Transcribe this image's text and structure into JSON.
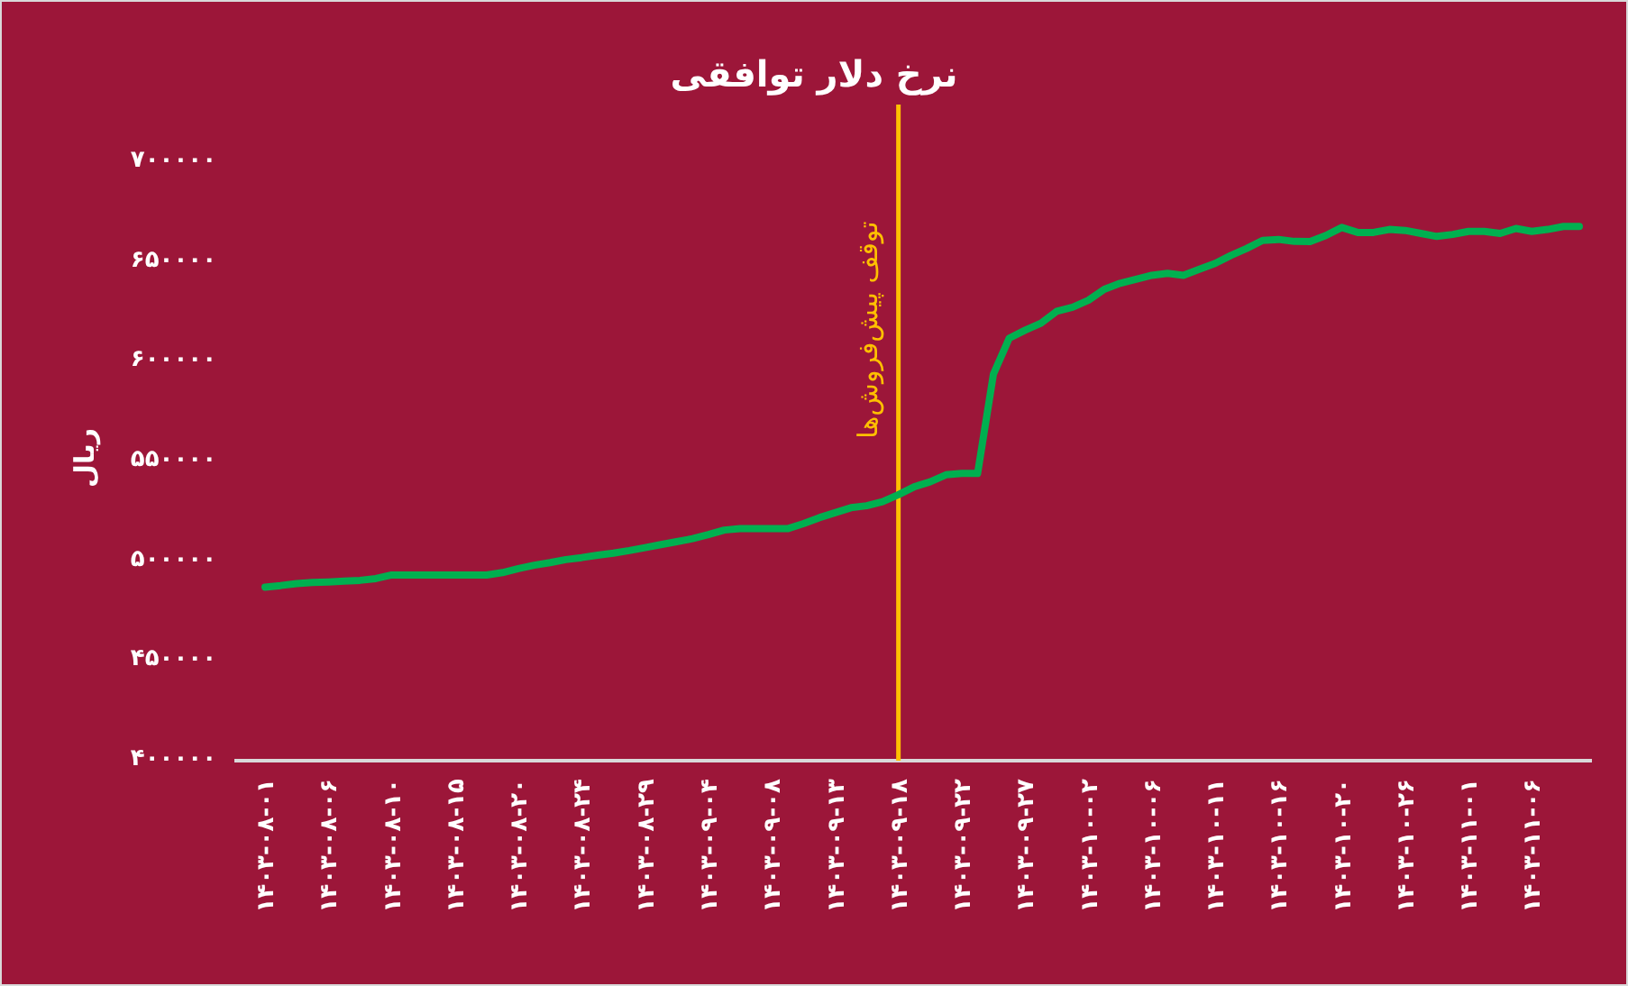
{
  "chart_data": {
    "type": "line",
    "title": "نرخ دلار توافقی",
    "ylabel": "ریال",
    "categories": [
      "۱۴۰۳-۰۸-۰۱",
      null,
      null,
      null,
      "۱۴۰۳-۰۸-۰۶",
      null,
      null,
      null,
      "۱۴۰۳-۰۸-۱۰",
      null,
      null,
      null,
      "۱۴۰۳-۰۸-۱۵",
      null,
      null,
      null,
      "۱۴۰۳-۰۸-۲۰",
      null,
      null,
      null,
      "۱۴۰۳-۰۸-۲۴",
      null,
      null,
      null,
      "۱۴۰۳-۰۸-۲۹",
      null,
      null,
      null,
      "۱۴۰۳-۰۹-۰۴",
      null,
      null,
      null,
      "۱۴۰۳-۰۹-۰۸",
      null,
      null,
      null,
      "۱۴۰۳-۰۹-۱۳",
      null,
      null,
      null,
      "۱۴۰۳-۰۹-۱۸",
      null,
      null,
      null,
      "۱۴۰۳-۰۹-۲۲",
      null,
      null,
      null,
      "۱۴۰۳-۰۹-۲۷",
      null,
      null,
      null,
      "۱۴۰۳-۱۰-۰۲",
      null,
      null,
      null,
      "۱۴۰۳-۱۰-۰۶",
      null,
      null,
      null,
      "۱۴۰۳-۱۰-۱۱",
      null,
      null,
      null,
      "۱۴۰۳-۱۰-۱۶",
      null,
      null,
      null,
      "۱۴۰۳-۱۰-۲۰",
      null,
      null,
      null,
      "۱۴۰۳-۱۰-۲۶",
      null,
      null,
      null,
      "۱۴۰۳-۱۱-۰۱",
      null,
      null,
      null,
      "۱۴۰۳-۱۱-۰۶",
      null,
      null,
      null
    ],
    "series": [
      {
        "color": "#00b050",
        "values": [
          485200,
          486000,
          487000,
          487500,
          487800,
          488200,
          488600,
          489500,
          491300,
          491300,
          491300,
          491300,
          491300,
          491300,
          491300,
          492500,
          494500,
          496200,
          497500,
          499000,
          500000,
          501200,
          502200,
          503500,
          505000,
          506500,
          508000,
          509500,
          511500,
          513800,
          514500,
          514500,
          514500,
          514500,
          517000,
          520000,
          522500,
          525000,
          526000,
          528000,
          531500,
          535500,
          538000,
          541500,
          542200,
          542200,
          592000,
          610000,
          614000,
          617500,
          623500,
          625500,
          629000,
          634500,
          637500,
          639500,
          641500,
          642500,
          641500,
          644500,
          647500,
          651500,
          655000,
          659000,
          659500,
          658500,
          658400,
          661500,
          665500,
          663000,
          663000,
          664500,
          664000,
          662500,
          661000,
          662000,
          663500,
          663500,
          662500,
          665000,
          663500,
          664500,
          666000,
          666000
        ]
      }
    ],
    "ylim": [
      400000,
      700000
    ],
    "yticks": [
      {
        "value": 400000,
        "label": "۴۰۰۰۰۰"
      },
      {
        "value": 450000,
        "label": "۴۵۰۰۰۰"
      },
      {
        "value": 500000,
        "label": "۵۰۰۰۰۰"
      },
      {
        "value": 550000,
        "label": "۵۵۰۰۰۰"
      },
      {
        "value": 600000,
        "label": "۶۰۰۰۰۰"
      },
      {
        "value": 650000,
        "label": "۶۵۰۰۰۰"
      },
      {
        "value": 700000,
        "label": "۷۰۰۰۰۰"
      }
    ],
    "ref_lines": [
      {
        "axis": "x",
        "value": "۱۴۰۳-۰۹-۱۸",
        "label": "توقف پیش‌فروش‌ها",
        "color": "#ffc000"
      }
    ]
  }
}
